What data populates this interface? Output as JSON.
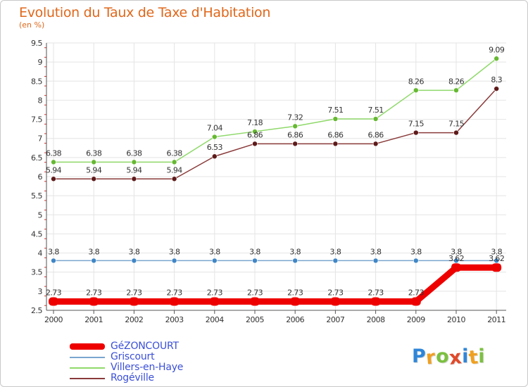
{
  "header": {
    "title": "Evolution du Taux de Taxe d'Habitation",
    "subtitle": "(en %)"
  },
  "chart_data": {
    "type": "line",
    "title": "Evolution du Taux de Taxe d'Habitation",
    "ylabel": "(en %)",
    "xlabel": "",
    "ylim": [
      2.5,
      9.5
    ],
    "yticks": [
      "2.5",
      "3",
      "3.5",
      "4",
      "4.5",
      "5",
      "5.5",
      "6",
      "6.5",
      "7",
      "7.5",
      "8",
      "8.5",
      "9",
      "9.5"
    ],
    "categories": [
      "2000",
      "2001",
      "2002",
      "2003",
      "2004",
      "2005",
      "2006",
      "2007",
      "2008",
      "2009",
      "2010",
      "2011"
    ],
    "series": [
      {
        "name": "Villers-en-Haye",
        "color": "#8fd96a",
        "marker": "#66b832",
        "values": [
          6.38,
          6.38,
          6.38,
          6.38,
          7.04,
          7.18,
          7.32,
          7.51,
          7.51,
          8.26,
          8.26,
          9.09
        ],
        "labels": [
          "6.38",
          "6.38",
          "6.38",
          "6.38",
          "7.04",
          "7.18",
          "7.32",
          "7.51",
          "7.51",
          "8.26",
          "8.26",
          "9.09"
        ]
      },
      {
        "name": "Rogéville",
        "color": "#8a3a3a",
        "marker": "#5e1a1a",
        "values": [
          5.94,
          5.94,
          5.94,
          5.94,
          6.53,
          6.86,
          6.86,
          6.86,
          6.86,
          7.15,
          7.15,
          8.3
        ],
        "labels": [
          "5.94",
          "5.94",
          "5.94",
          "5.94",
          "6.53",
          "6.86",
          "6.86",
          "6.86",
          "6.86",
          "7.15",
          "7.15",
          "8.3"
        ]
      },
      {
        "name": "Griscourt",
        "color": "#7aa6cf",
        "marker": "#3f86c6",
        "values": [
          3.8,
          3.8,
          3.8,
          3.8,
          3.8,
          3.8,
          3.8,
          3.8,
          3.8,
          3.8,
          3.8,
          3.8
        ],
        "labels": [
          "3.8",
          "3.8",
          "3.8",
          "3.8",
          "3.8",
          "3.8",
          "3.8",
          "3.8",
          "3.8",
          "3.8",
          "3.8",
          "3.8"
        ]
      },
      {
        "name": "GéZONCOURT",
        "color": "#ee0000",
        "marker": "#ee0000",
        "values": [
          2.73,
          2.73,
          2.73,
          2.73,
          2.73,
          2.73,
          2.73,
          2.73,
          2.73,
          2.73,
          3.62,
          3.62
        ],
        "labels": [
          "2.73",
          "2.73",
          "2.73",
          "2.73",
          "2.73",
          "2.73",
          "2.73",
          "2.73",
          "2.73",
          "2.73",
          "3.62",
          "3.62"
        ]
      }
    ]
  },
  "legend": {
    "items": [
      {
        "name": "GéZONCOURT",
        "color": "#ee0000"
      },
      {
        "name": "Griscourt",
        "color": "#7aa6cf"
      },
      {
        "name": "Villers-en-Haye",
        "color": "#8fd96a"
      },
      {
        "name": "Rogéville",
        "color": "#8a3a3a"
      }
    ]
  },
  "logo": {
    "text": "Proxiti",
    "letters": [
      {
        "ch": "P",
        "color": "#2f86d8"
      },
      {
        "ch": "r",
        "color": "#f0a020"
      },
      {
        "ch": "o",
        "color": "#7cc040"
      },
      {
        "ch": "x",
        "color": "#e04a2a"
      },
      {
        "ch": "i",
        "color": "#2f86d8"
      },
      {
        "ch": "t",
        "color": "#f0a020"
      },
      {
        "ch": "i",
        "color": "#7cc040"
      }
    ]
  }
}
